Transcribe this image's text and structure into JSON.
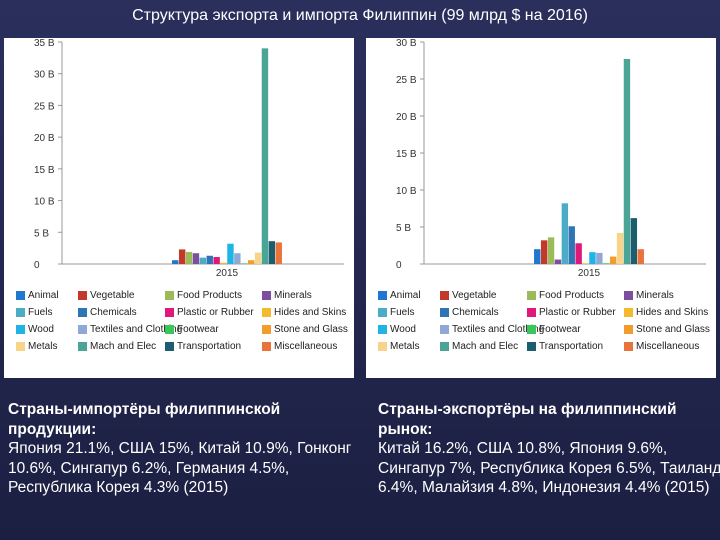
{
  "title": "Структура экспорта и импорта Филиппин (99 млрд $ на 2016)",
  "categories": [
    {
      "name": "Animal",
      "color": "#1f77d0"
    },
    {
      "name": "Vegetable",
      "color": "#c0392b"
    },
    {
      "name": "Food Products",
      "color": "#9bbb59"
    },
    {
      "name": "Minerals",
      "color": "#7b4f9e"
    },
    {
      "name": "Fuels",
      "color": "#4bacc6"
    },
    {
      "name": "Chemicals",
      "color": "#2e75b6"
    },
    {
      "name": "Plastic or Rubber",
      "color": "#e0187a"
    },
    {
      "name": "Hides and Skins",
      "color": "#f5b82e"
    },
    {
      "name": "Wood",
      "color": "#1fb3e6"
    },
    {
      "name": "Textiles and Clothing",
      "color": "#8fa8d6"
    },
    {
      "name": "Footwear",
      "color": "#38c85a"
    },
    {
      "name": "Stone and Glass",
      "color": "#f39c2c"
    },
    {
      "name": "Metals",
      "color": "#f7d48a"
    },
    {
      "name": "Mach and Elec",
      "color": "#4aa596"
    },
    {
      "name": "Transportation",
      "color": "#1d5e6e"
    },
    {
      "name": "Miscellaneous",
      "color": "#e8743b"
    }
  ],
  "legend_labels": [
    "Animal",
    "Vegetable",
    "Food Products",
    "Minerals",
    "Fuels",
    "Chemicals",
    "Plastic or Rubber",
    "Hides and Skins",
    "Wood",
    "Textiles and Clothing",
    "Footwear",
    "Stone and Glass",
    "Metals",
    "Mach and Elec",
    "Transportation",
    "Miscellaneous"
  ],
  "chart_data": [
    {
      "type": "bar",
      "title": "",
      "x": [
        "2015"
      ],
      "ylim": [
        0,
        35
      ],
      "yticks": [
        "0",
        "5 B",
        "10 B",
        "15 B",
        "20 B",
        "25 B",
        "30 B",
        "35 B"
      ],
      "ytick_values": [
        0,
        5,
        10,
        15,
        20,
        25,
        30,
        35
      ],
      "grid": false,
      "legend": "bottom",
      "series": [
        {
          "name": "Animal",
          "values": [
            0.6
          ]
        },
        {
          "name": "Vegetable",
          "values": [
            2.3
          ]
        },
        {
          "name": "Food Products",
          "values": [
            1.9
          ]
        },
        {
          "name": "Minerals",
          "values": [
            1.7
          ]
        },
        {
          "name": "Fuels",
          "values": [
            1.0
          ]
        },
        {
          "name": "Chemicals",
          "values": [
            1.3
          ]
        },
        {
          "name": "Plastic or Rubber",
          "values": [
            1.1
          ]
        },
        {
          "name": "Hides and Skins",
          "values": [
            0.2
          ]
        },
        {
          "name": "Wood",
          "values": [
            3.2
          ]
        },
        {
          "name": "Textiles and Clothing",
          "values": [
            1.7
          ]
        },
        {
          "name": "Footwear",
          "values": [
            0.1
          ]
        },
        {
          "name": "Stone and Glass",
          "values": [
            0.6
          ]
        },
        {
          "name": "Metals",
          "values": [
            1.8
          ]
        },
        {
          "name": "Mach and Elec",
          "values": [
            34.0
          ]
        },
        {
          "name": "Transportation",
          "values": [
            3.6
          ]
        },
        {
          "name": "Miscellaneous",
          "values": [
            3.4
          ]
        }
      ]
    },
    {
      "type": "bar",
      "title": "",
      "x": [
        "2015"
      ],
      "ylim": [
        0,
        30
      ],
      "yticks": [
        "0",
        "5 B",
        "10 B",
        "15 B",
        "20 B",
        "25 B",
        "30 B"
      ],
      "ytick_values": [
        0,
        5,
        10,
        15,
        20,
        25,
        30
      ],
      "grid": false,
      "legend": "bottom",
      "series": [
        {
          "name": "Animal",
          "values": [
            2.0
          ]
        },
        {
          "name": "Vegetable",
          "values": [
            3.2
          ]
        },
        {
          "name": "Food Products",
          "values": [
            3.6
          ]
        },
        {
          "name": "Minerals",
          "values": [
            0.6
          ]
        },
        {
          "name": "Fuels",
          "values": [
            8.2
          ]
        },
        {
          "name": "Chemicals",
          "values": [
            5.1
          ]
        },
        {
          "name": "Plastic or Rubber",
          "values": [
            2.8
          ]
        },
        {
          "name": "Hides and Skins",
          "values": [
            0.1
          ]
        },
        {
          "name": "Wood",
          "values": [
            1.6
          ]
        },
        {
          "name": "Textiles and Clothing",
          "values": [
            1.5
          ]
        },
        {
          "name": "Footwear",
          "values": [
            0.1
          ]
        },
        {
          "name": "Stone and Glass",
          "values": [
            1.0
          ]
        },
        {
          "name": "Metals",
          "values": [
            4.2
          ]
        },
        {
          "name": "Mach and Elec",
          "values": [
            27.7
          ]
        },
        {
          "name": "Transportation",
          "values": [
            6.2
          ]
        },
        {
          "name": "Miscellaneous",
          "values": [
            2.0
          ]
        }
      ]
    }
  ],
  "captions": [
    {
      "heading": "Страны-импортёры филиппинской продукции:",
      "text": "Япония 21.1%, США 15%, Китай 10.9%, Гонконг 10.6%, Сингапур 6.2%, Германия 4.5%, Республика Корея 4.3% (2015)"
    },
    {
      "heading": "Страны-экспортёры на филиппинский рынок:",
      "text": "Китай 16.2%, США 10.8%, Япония 9.6%, Сингапур 7%, Республика Корея 6.5%, Таиланд 6.4%, Малайзия 4.8%, Индонезия 4.4% (2015)"
    }
  ]
}
